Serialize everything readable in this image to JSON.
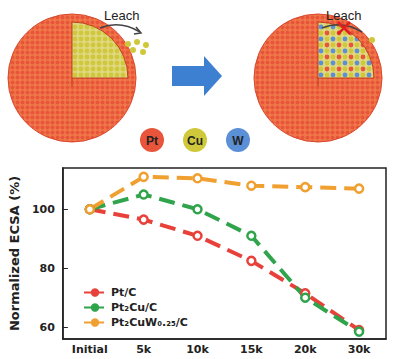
{
  "illustration": {
    "leach_left": "Leach",
    "leach_right": "Leach",
    "elements": [
      {
        "symbol": "Pt",
        "color": "#e8553a"
      },
      {
        "symbol": "Cu",
        "color": "#cfc83a"
      },
      {
        "symbol": "W",
        "color": "#5b8fd6"
      }
    ]
  },
  "chart_data": {
    "type": "line",
    "y_label": "Normalized ECSA (%)",
    "categories": [
      "Initial",
      "5k",
      "10k",
      "15k",
      "20k",
      "30k"
    ],
    "series": [
      {
        "name": "Pt/C",
        "color": "#e8413a",
        "values": [
          100,
          96.5,
          91,
          82.5,
          71.5,
          59
        ]
      },
      {
        "name": "Pt₂Cu/C",
        "color": "#2fa44a",
        "values": [
          100,
          105,
          100,
          91,
          70,
          58.5
        ]
      },
      {
        "name": "Pt₂CuW₀.₂₅/C",
        "color": "#f0a030",
        "values": [
          100,
          111,
          110.5,
          108,
          107.5,
          107
        ]
      }
    ],
    "ylim": [
      56,
      114
    ],
    "yticks": [
      60,
      80,
      100
    ],
    "grid": false,
    "legend": "lower left",
    "marker": "circle",
    "line_style": "dashed"
  }
}
